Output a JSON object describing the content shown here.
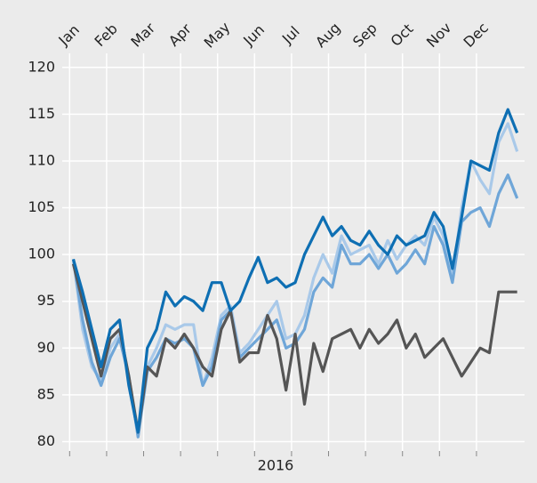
{
  "chart_data": {
    "type": "line",
    "x_label": "2016",
    "x": [
      0.1,
      0.35,
      0.6,
      0.85,
      1.1,
      1.35,
      1.6,
      1.85,
      2.1,
      2.35,
      2.6,
      2.85,
      3.1,
      3.35,
      3.6,
      3.85,
      4.1,
      4.35,
      4.6,
      4.85,
      5.1,
      5.35,
      5.6,
      5.85,
      6.1,
      6.35,
      6.6,
      6.85,
      7.1,
      7.35,
      7.6,
      7.85,
      8.1,
      8.35,
      8.6,
      8.85,
      9.1,
      9.35,
      9.6,
      9.85,
      10.1,
      10.35,
      10.6,
      10.85,
      11.1,
      11.35,
      11.6,
      11.85,
      12.1
    ],
    "series": [
      {
        "color": "#a9c9e9",
        "values": [
          99.5,
          92,
          88,
          86.5,
          90,
          91.5,
          87,
          80.5,
          88,
          90,
          92.5,
          92,
          92.5,
          92.5,
          86,
          89,
          93.5,
          94.5,
          89.5,
          90.5,
          92,
          93.5,
          95,
          91,
          91.5,
          93.5,
          97.5,
          100,
          98,
          102,
          100,
          100.5,
          101,
          99,
          101.5,
          99.5,
          101,
          102,
          101,
          104,
          102,
          97.5,
          105,
          110,
          108,
          106.5,
          112,
          114,
          111
        ]
      },
      {
        "color": "#6fa6d8",
        "values": [
          99.5,
          93,
          88.5,
          86,
          89,
          91,
          87,
          80.5,
          87.5,
          89,
          91,
          90.5,
          91,
          90,
          86,
          88,
          93,
          94,
          89,
          90,
          91,
          92,
          93,
          90,
          90.5,
          92,
          96,
          97.5,
          96.5,
          101,
          99,
          99,
          100,
          98.5,
          100,
          98,
          99,
          100.5,
          99,
          103,
          101,
          97,
          103.5,
          104.5,
          105,
          103,
          106.5,
          108.5,
          106
        ]
      },
      {
        "color": "#555555",
        "values": [
          99,
          95,
          91,
          87,
          91,
          92,
          87,
          81,
          88,
          87,
          91,
          90,
          91.5,
          90,
          88,
          87,
          92,
          94,
          88.5,
          89.5,
          89.5,
          93.5,
          91,
          85.5,
          91.5,
          84,
          90.5,
          87.5,
          91,
          91.5,
          92,
          90,
          92,
          90.5,
          91.5,
          93,
          90,
          91.5,
          89,
          90,
          91,
          89,
          87,
          88.5,
          90,
          89.5,
          96,
          96,
          96
        ]
      },
      {
        "color": "#0e6fb3",
        "values": [
          99.5,
          96,
          92,
          88,
          92,
          93,
          86,
          81,
          90,
          92,
          96,
          94.5,
          95.5,
          95,
          94,
          97,
          97,
          94,
          95,
          97.5,
          99.7,
          97,
          97.5,
          96.5,
          97,
          100,
          102,
          104,
          102,
          103,
          101.5,
          101,
          102.5,
          101,
          100,
          102,
          101,
          101.5,
          102,
          104.5,
          103,
          98.5,
          104,
          110,
          109.5,
          109,
          113,
          115.5,
          113
        ]
      }
    ],
    "xlim": [
      -0.2,
      12.3
    ],
    "xticks": [
      {
        "value": 0,
        "label": "Jan"
      },
      {
        "value": 1,
        "label": "Feb"
      },
      {
        "value": 2,
        "label": "Mar"
      },
      {
        "value": 3,
        "label": "Apr"
      },
      {
        "value": 4,
        "label": "May"
      },
      {
        "value": 5,
        "label": "Jun"
      },
      {
        "value": 6,
        "label": "Jul"
      },
      {
        "value": 7,
        "label": "Aug"
      },
      {
        "value": 8,
        "label": "Sep"
      },
      {
        "value": 9,
        "label": "Oct"
      },
      {
        "value": 10,
        "label": "Nov"
      },
      {
        "value": 11,
        "label": "Dec"
      }
    ],
    "ylim": [
      79,
      121.5
    ],
    "yticks": [
      80,
      85,
      90,
      95,
      100,
      105,
      110,
      115,
      120
    ],
    "grid": true
  }
}
